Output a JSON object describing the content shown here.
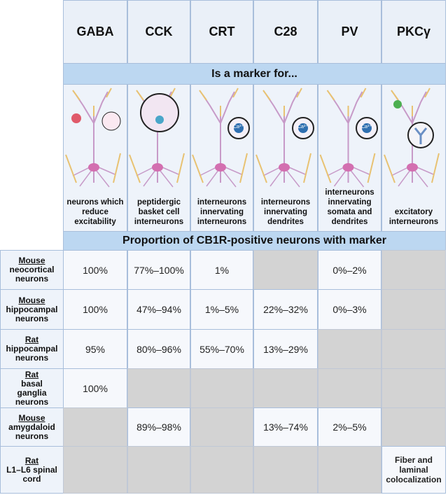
{
  "header": {
    "markers": [
      "GABA",
      "CCK",
      "CRT",
      "C28",
      "PV",
      "PKCγ"
    ]
  },
  "banners": [
    "Is a marker for...",
    "Proportion of CB1R-positive neurons with marker"
  ],
  "descriptions": [
    "neurons which reduce excitability",
    "peptidergic basket cell interneurons",
    "interneurons innervating interneurons",
    "interneurons innervating dendrites",
    "interneurons innervating somata and dendrites",
    "excitatory interneurons"
  ],
  "calcium_label": "Ca²⁺",
  "table": {
    "rows": [
      {
        "species": "Mouse",
        "tissue": "neocortical neurons",
        "cells": [
          "100%",
          "77%–100%",
          "1%",
          null,
          "0%–2%",
          null
        ]
      },
      {
        "species": "Mouse",
        "tissue": "hippocampal neurons",
        "cells": [
          "100%",
          "47%–94%",
          "1%–5%",
          "22%–32%",
          "0%–3%",
          null
        ]
      },
      {
        "species": "Rat",
        "tissue": "hippocampal neurons",
        "cells": [
          "95%",
          "80%–96%",
          "55%–70%",
          "13%–29%",
          null,
          null
        ]
      },
      {
        "species": "Rat",
        "tissue": "basal ganglia neurons",
        "cells": [
          "100%",
          null,
          null,
          null,
          null,
          null
        ]
      },
      {
        "species": "Mouse",
        "tissue": "amygdaloid neurons",
        "cells": [
          null,
          "89%–98%",
          null,
          "13%–74%",
          "2%–5%",
          null
        ]
      },
      {
        "species": "Rat",
        "tissue": "L1–L6 spinal cord",
        "cells": [
          null,
          null,
          null,
          null,
          null,
          "Fiber and laminal colocalization"
        ]
      }
    ]
  }
}
